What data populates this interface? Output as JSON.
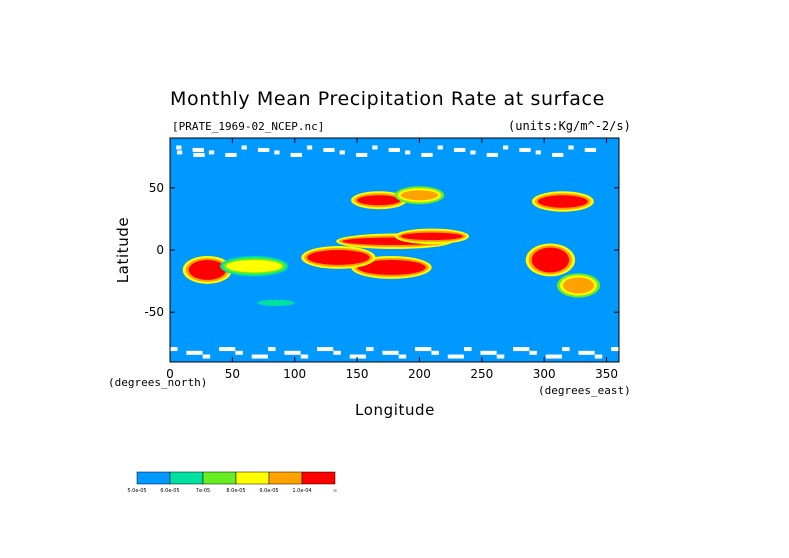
{
  "chart_data": {
    "type": "heatmap",
    "title": "Monthly Mean Precipitation Rate at surface",
    "subtitle_left": "[PRATE_1969-02_NCEP.nc]",
    "subtitle_right": "(units:Kg/m^-2/s)",
    "xlabel": "Longitude",
    "ylabel": "Latitude",
    "x_unit_note": "(degrees_north)",
    "y_unit_note": "(degrees_east)",
    "xlim": [
      0,
      360
    ],
    "ylim": [
      -90,
      90
    ],
    "x_ticks": [
      0,
      50,
      100,
      150,
      200,
      250,
      300,
      350
    ],
    "y_ticks": [
      50,
      0,
      -50
    ],
    "grid": false,
    "colorbar": {
      "position": "bottom-left",
      "colors": [
        "#0099ff",
        "#00e0a0",
        "#66ee22",
        "#ffff00",
        "#ffa200",
        "#ff0000"
      ],
      "labels": [
        "5.0e-05",
        "6.0e-05",
        "7e-05",
        "8.0e-05",
        "9.0e-05",
        "1.0e-04",
        "∞"
      ]
    },
    "field": {
      "background_color": "#0099ff",
      "missing_color": "#ffffff",
      "regions": [
        {
          "name": "pacific-itcz-west",
          "lon": [
            138,
            222
          ],
          "lat": [
            4,
            10
          ],
          "level": 6
        },
        {
          "name": "pacific-itcz-core",
          "lon": [
            185,
            235
          ],
          "lat": [
            8,
            14
          ],
          "level": 6
        },
        {
          "name": "spcz",
          "lon": [
            150,
            205
          ],
          "lat": [
            -20,
            -8
          ],
          "level": 6
        },
        {
          "name": "maritime-continent",
          "lon": [
            110,
            160
          ],
          "lat": [
            -12,
            0
          ],
          "level": 6
        },
        {
          "name": "n-pacific-storm-track-west",
          "lon": [
            150,
            185
          ],
          "lat": [
            36,
            44
          ],
          "level": 6
        },
        {
          "name": "n-pacific-storm-track-east",
          "lon": [
            185,
            215
          ],
          "lat": [
            40,
            48
          ],
          "level": 5
        },
        {
          "name": "n-atlantic-storm-track",
          "lon": [
            295,
            335
          ],
          "lat": [
            34,
            44
          ],
          "level": 6
        },
        {
          "name": "amazon",
          "lon": [
            290,
            320
          ],
          "lat": [
            -18,
            2
          ],
          "level": 6
        },
        {
          "name": "s-atlantic-convergence",
          "lon": [
            315,
            340
          ],
          "lat": [
            -35,
            -22
          ],
          "level": 5
        },
        {
          "name": "southern-africa",
          "lon": [
            15,
            45
          ],
          "lat": [
            -24,
            -8
          ],
          "level": 6
        },
        {
          "name": "indian-ocean-sw",
          "lon": [
            45,
            90
          ],
          "lat": [
            -18,
            -8
          ],
          "level": 4
        },
        {
          "name": "indian-ocean-south",
          "lon": [
            70,
            100
          ],
          "lat": [
            -45,
            -40
          ],
          "level": 2
        }
      ]
    }
  }
}
